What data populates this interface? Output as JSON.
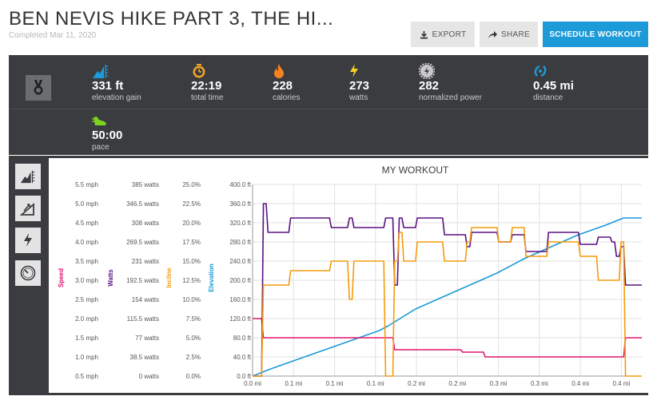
{
  "header": {
    "title": "BEN NEVIS HIKE PART 3, THE HI...",
    "completed": "Completed Mar 11, 2020",
    "export_label": "EXPORT",
    "share_label": "SHARE",
    "schedule_label": "SCHEDULE WORKOUT"
  },
  "stats": [
    {
      "icon": "elevation-gain-icon",
      "value": "331 ft",
      "label": "elevation gain"
    },
    {
      "icon": "stopwatch-icon",
      "value": "22:19",
      "label": "total time"
    },
    {
      "icon": "flame-icon",
      "value": "228",
      "label": "calories"
    },
    {
      "icon": "lightning-icon",
      "value": "273",
      "label": "watts"
    },
    {
      "icon": "gear-icon",
      "value": "282",
      "label": "normalized power"
    },
    {
      "icon": "distance-icon",
      "value": "0.45 mi",
      "label": "distance"
    },
    {
      "icon": "pace-shoe-icon",
      "value": "50:00",
      "label": "pace"
    }
  ],
  "colors": {
    "speed": "#e0146e",
    "watts": "#5a1080",
    "incline": "#f59b0c",
    "elevation": "#1a9ad6",
    "accent": "#1d9ad8",
    "panel": "#3a3c3f"
  },
  "chart_data": {
    "type": "line",
    "title": "MY WORKOUT",
    "xlabel": "",
    "x_ticks": [
      "0.0 mi",
      "0.1 mi",
      "0.1 mi",
      "0.1 mi",
      "0.2 mi",
      "0.2 mi",
      "0.3 mi",
      "0.3 mi",
      "0.4 mi",
      "0.4 mi"
    ],
    "xlim": [
      0,
      0.43
    ],
    "axes": [
      {
        "name": "Speed",
        "ticks": [
          "0.5 mph",
          "1.0 mph",
          "1.5 mph",
          "2.0 mph",
          "2.5 mph",
          "3.0 mph",
          "3.5 mph",
          "4.0 mph",
          "4.5 mph",
          "5.0 mph",
          "5.5 mph"
        ]
      },
      {
        "name": "Watts",
        "ticks": [
          "0 watts",
          "38.5 watts",
          "77 watts",
          "115.5 watts",
          "154 watts",
          "192.5 watts",
          "231 watts",
          "269.5 watts",
          "308 watts",
          "346.5 watts",
          "385 watts"
        ]
      },
      {
        "name": "Incline",
        "ticks": [
          "0.0%",
          "2.5%",
          "5.0%",
          "7.5%",
          "10.0%",
          "12.5%",
          "15.0%",
          "17.5%",
          "20.0%",
          "22.5%",
          "25.0%"
        ]
      },
      {
        "name": "Elevation",
        "ticks": [
          "0.0 ft",
          "40.0 ft",
          "80.0 ft",
          "120.0 ft",
          "160.0 ft",
          "200.0 ft",
          "240.0 ft",
          "280.0 ft",
          "320.0 ft",
          "360.0 ft",
          "400.0 ft"
        ]
      }
    ],
    "ylim": [
      0,
      400
    ],
    "grid": true,
    "series": [
      {
        "name": "Elevation",
        "color": "#1a9ad6",
        "x": [
          0,
          0.02,
          0.05,
          0.08,
          0.11,
          0.14,
          0.15,
          0.18,
          0.21,
          0.24,
          0.27,
          0.3,
          0.33,
          0.36,
          0.39,
          0.41,
          0.43
        ],
        "y": [
          0,
          15,
          35,
          55,
          75,
          95,
          105,
          140,
          165,
          190,
          215,
          245,
          270,
          295,
          315,
          330,
          330
        ]
      },
      {
        "name": "Speed",
        "color": "#e0146e",
        "x": [
          0,
          0.01,
          0.012,
          0.155,
          0.157,
          0.23,
          0.232,
          0.255,
          0.257,
          0.41,
          0.412,
          0.43
        ],
        "y": [
          120,
          120,
          80,
          80,
          55,
          55,
          50,
          50,
          40,
          40,
          80,
          80
        ]
      },
      {
        "name": "Watts",
        "color": "#5a1080",
        "x": [
          0,
          0.01,
          0.012,
          0.015,
          0.017,
          0.04,
          0.042,
          0.085,
          0.087,
          0.105,
          0.107,
          0.11,
          0.112,
          0.145,
          0.147,
          0.155,
          0.157,
          0.16,
          0.162,
          0.165,
          0.167,
          0.18,
          0.182,
          0.21,
          0.212,
          0.235,
          0.237,
          0.24,
          0.242,
          0.27,
          0.272,
          0.285,
          0.287,
          0.3,
          0.302,
          0.325,
          0.327,
          0.36,
          0.362,
          0.38,
          0.382,
          0.395,
          0.397,
          0.4,
          0.402,
          0.405,
          0.407,
          0.41,
          0.412,
          0.43
        ],
        "y": [
          0,
          0,
          360,
          360,
          300,
          300,
          330,
          330,
          310,
          310,
          330,
          330,
          310,
          310,
          330,
          330,
          190,
          190,
          330,
          330,
          310,
          310,
          330,
          330,
          295,
          295,
          270,
          270,
          300,
          300,
          280,
          280,
          295,
          295,
          260,
          260,
          300,
          300,
          275,
          275,
          290,
          290,
          280,
          280,
          250,
          250,
          270,
          270,
          190,
          190
        ]
      },
      {
        "name": "Incline",
        "color": "#f59b0c",
        "x": [
          0,
          0.01,
          0.012,
          0.04,
          0.042,
          0.085,
          0.087,
          0.105,
          0.107,
          0.11,
          0.112,
          0.145,
          0.147,
          0.155,
          0.157,
          0.16,
          0.162,
          0.165,
          0.167,
          0.18,
          0.182,
          0.21,
          0.212,
          0.235,
          0.237,
          0.24,
          0.242,
          0.27,
          0.272,
          0.285,
          0.287,
          0.3,
          0.302,
          0.325,
          0.327,
          0.36,
          0.362,
          0.38,
          0.382,
          0.405,
          0.407,
          0.41,
          0.412,
          0.43
        ],
        "y": [
          0,
          0,
          190,
          190,
          220,
          220,
          240,
          240,
          160,
          160,
          240,
          240,
          0,
          0,
          240,
          240,
          300,
          300,
          240,
          240,
          280,
          280,
          240,
          240,
          280,
          280,
          310,
          310,
          280,
          280,
          310,
          310,
          250,
          250,
          280,
          280,
          250,
          250,
          200,
          200,
          280,
          280,
          0,
          0
        ]
      }
    ]
  }
}
